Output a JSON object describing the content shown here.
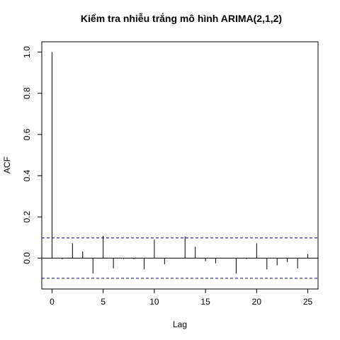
{
  "chart_data": {
    "type": "bar",
    "title": "Kiểm tra nhiễu trắng mô hình ARIMA(2,1,2)",
    "xlabel": "Lag",
    "ylabel": "ACF",
    "x_ticks": [
      "0",
      "5",
      "10",
      "15",
      "20",
      "25"
    ],
    "y_ticks": [
      "0.0",
      "0.2",
      "0.4",
      "0.6",
      "0.8",
      "1.0"
    ],
    "xlim": [
      -1,
      26
    ],
    "ylim": [
      -0.15,
      1.05
    ],
    "confidence_bound": 0.098,
    "confidence_color": "#00008B",
    "lags": [
      0,
      1,
      2,
      3,
      4,
      5,
      6,
      7,
      8,
      9,
      10,
      11,
      12,
      13,
      14,
      15,
      16,
      17,
      18,
      19,
      20,
      21,
      22,
      23,
      24,
      25
    ],
    "values": [
      1.0,
      -0.005,
      0.072,
      0.032,
      -0.075,
      0.108,
      -0.05,
      -0.005,
      -0.005,
      -0.055,
      0.09,
      -0.03,
      0.0,
      0.105,
      0.055,
      -0.015,
      -0.025,
      0.0,
      -0.075,
      -0.005,
      0.072,
      -0.055,
      -0.035,
      -0.02,
      -0.05,
      0.02
    ],
    "grid": false
  }
}
